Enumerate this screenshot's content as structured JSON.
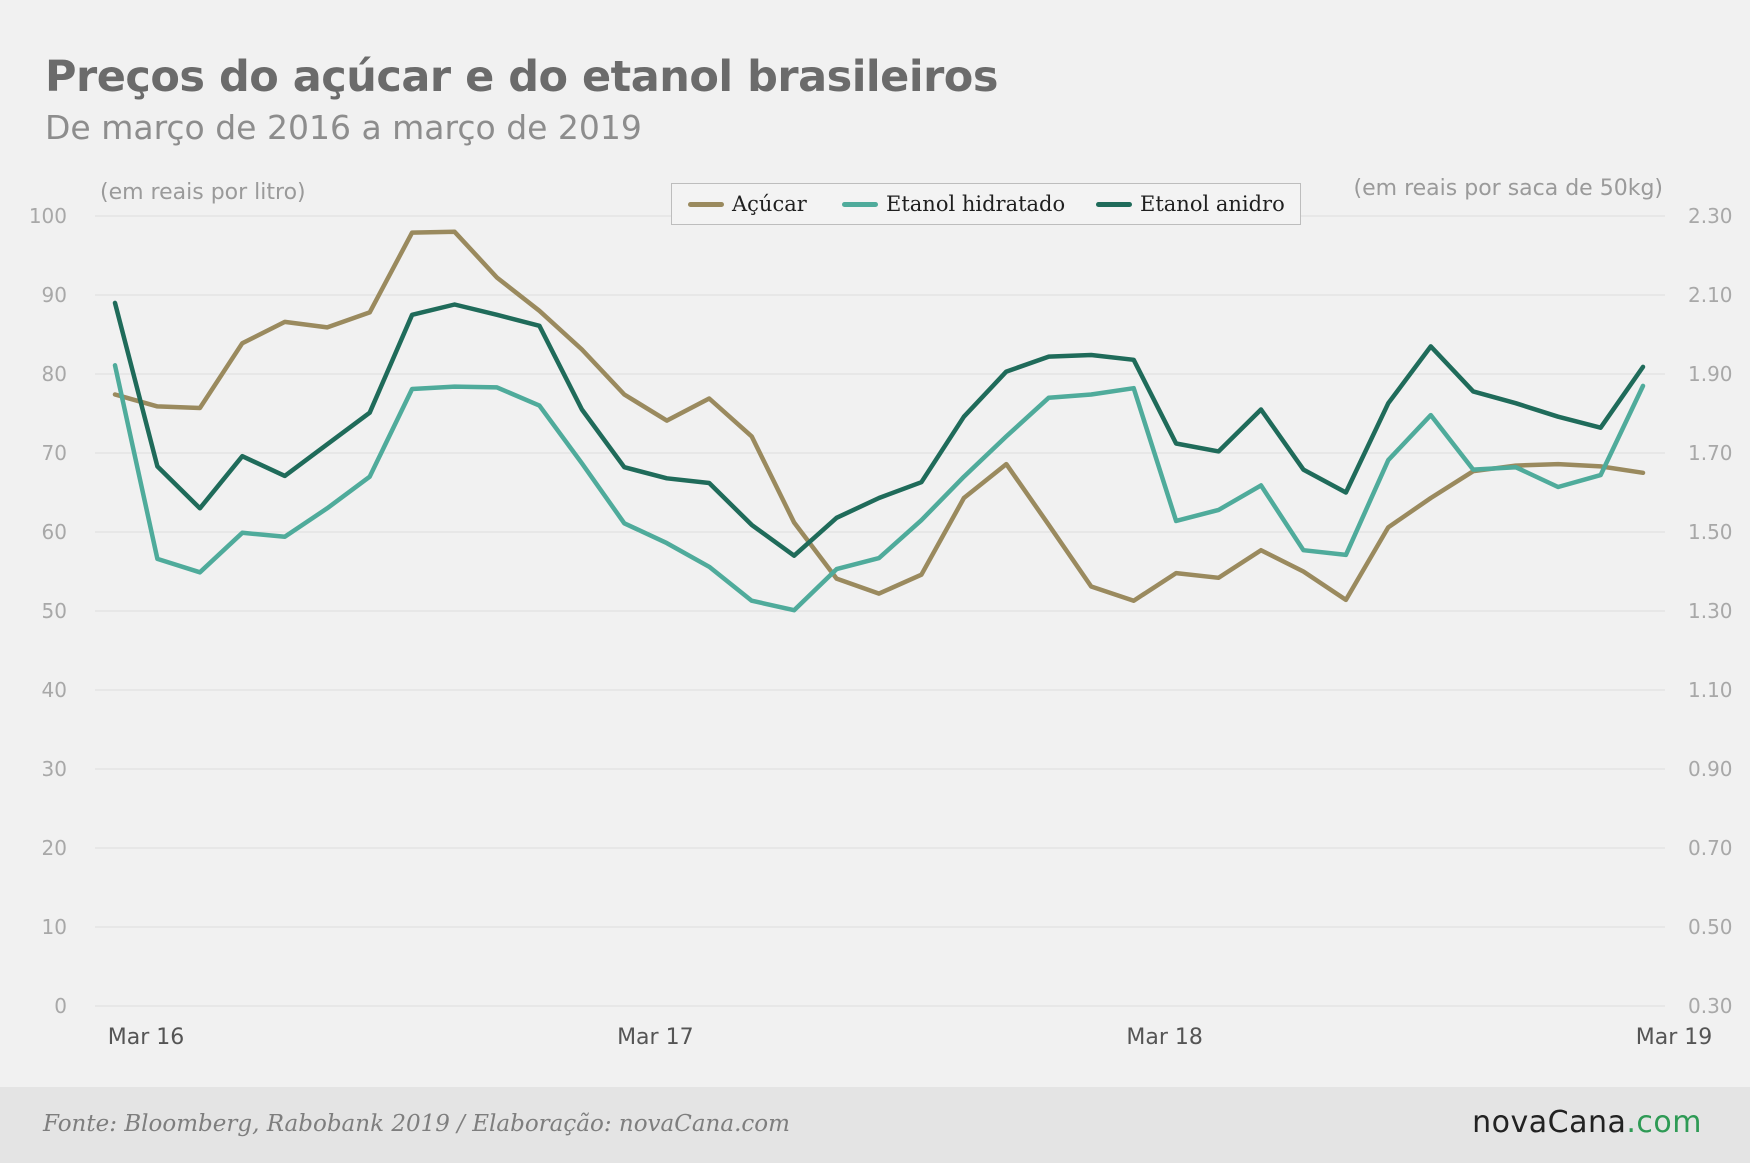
{
  "title": "Preços do açúcar e do etanol brasileiros",
  "subtitle": "De março de 2016 a março de 2019",
  "footer": {
    "source": "Fonte: Bloomberg, Rabobank 2019 / Elaboração: novaCana.com",
    "brand_main": "novaCana",
    "brand_suffix": ".com"
  },
  "colors": {
    "acucar": "#9a8a5e",
    "etanol_hidratado": "#4fab9b",
    "etanol_anidro": "#1f6b5a",
    "grid": "#dddddd",
    "axis_text": "#a8a8a8"
  },
  "chart_data": {
    "type": "line",
    "left_axis_label": "(em reais por litro)",
    "right_axis_label": "(em reais por saca de 50kg)",
    "ylim_left": [
      0,
      100
    ],
    "ylim_right": [
      0.3,
      2.3
    ],
    "left_ticks": [
      "0",
      "10",
      "20",
      "30",
      "40",
      "50",
      "60",
      "70",
      "80",
      "90",
      "100"
    ],
    "right_ticks": [
      "0.30",
      "0.50",
      "0.70",
      "0.90",
      "1.10",
      "1.30",
      "1.50",
      "1.70",
      "1.90",
      "2.10",
      "2.30"
    ],
    "x_tick_labels": [
      {
        "label": "Mar 16",
        "index": 0
      },
      {
        "label": "Mar 17",
        "index": 12
      },
      {
        "label": "Mar 18",
        "index": 24
      },
      {
        "label": "Mar 19",
        "index": 36
      }
    ],
    "grid": true,
    "legend_position": "top-center",
    "series": [
      {
        "name": "Açúcar",
        "color_key": "acucar",
        "values": [
          77.4,
          75.9,
          75.7,
          83.9,
          86.6,
          85.9,
          87.8,
          97.9,
          98.0,
          92.2,
          88.0,
          83.1,
          77.4,
          74.1,
          76.9,
          72.1,
          61.2,
          54.1,
          52.2,
          54.6,
          64.3,
          68.6,
          60.9,
          53.1,
          51.3,
          54.8,
          54.2,
          57.7,
          55.0,
          51.4,
          60.6,
          64.3,
          67.7,
          68.4,
          68.6,
          68.3,
          67.5
        ]
      },
      {
        "name": "Etanol hidratado",
        "color_key": "etanol_hidratado",
        "values": [
          81.1,
          56.6,
          54.9,
          59.9,
          59.4,
          63.0,
          67.0,
          78.1,
          78.4,
          78.3,
          76.0,
          68.7,
          61.1,
          58.6,
          55.6,
          51.3,
          50.1,
          55.3,
          56.7,
          61.5,
          67.0,
          72.1,
          77.0,
          77.4,
          78.2,
          61.4,
          62.8,
          65.9,
          57.7,
          57.1,
          69.1,
          74.8,
          67.9,
          68.2,
          65.7,
          67.2,
          78.5
        ]
      },
      {
        "name": "Etanol anidro",
        "color_key": "etanol_anidro",
        "values": [
          89.0,
          68.3,
          63.0,
          69.6,
          67.1,
          71.1,
          75.1,
          87.5,
          88.8,
          87.5,
          86.1,
          75.5,
          68.2,
          66.8,
          66.2,
          60.9,
          57.0,
          61.8,
          64.3,
          66.3,
          74.6,
          80.3,
          82.2,
          82.4,
          81.8,
          71.2,
          70.2,
          75.5,
          67.9,
          65.0,
          76.3,
          83.5,
          77.8,
          76.3,
          74.6,
          73.2,
          80.9
        ]
      }
    ]
  }
}
